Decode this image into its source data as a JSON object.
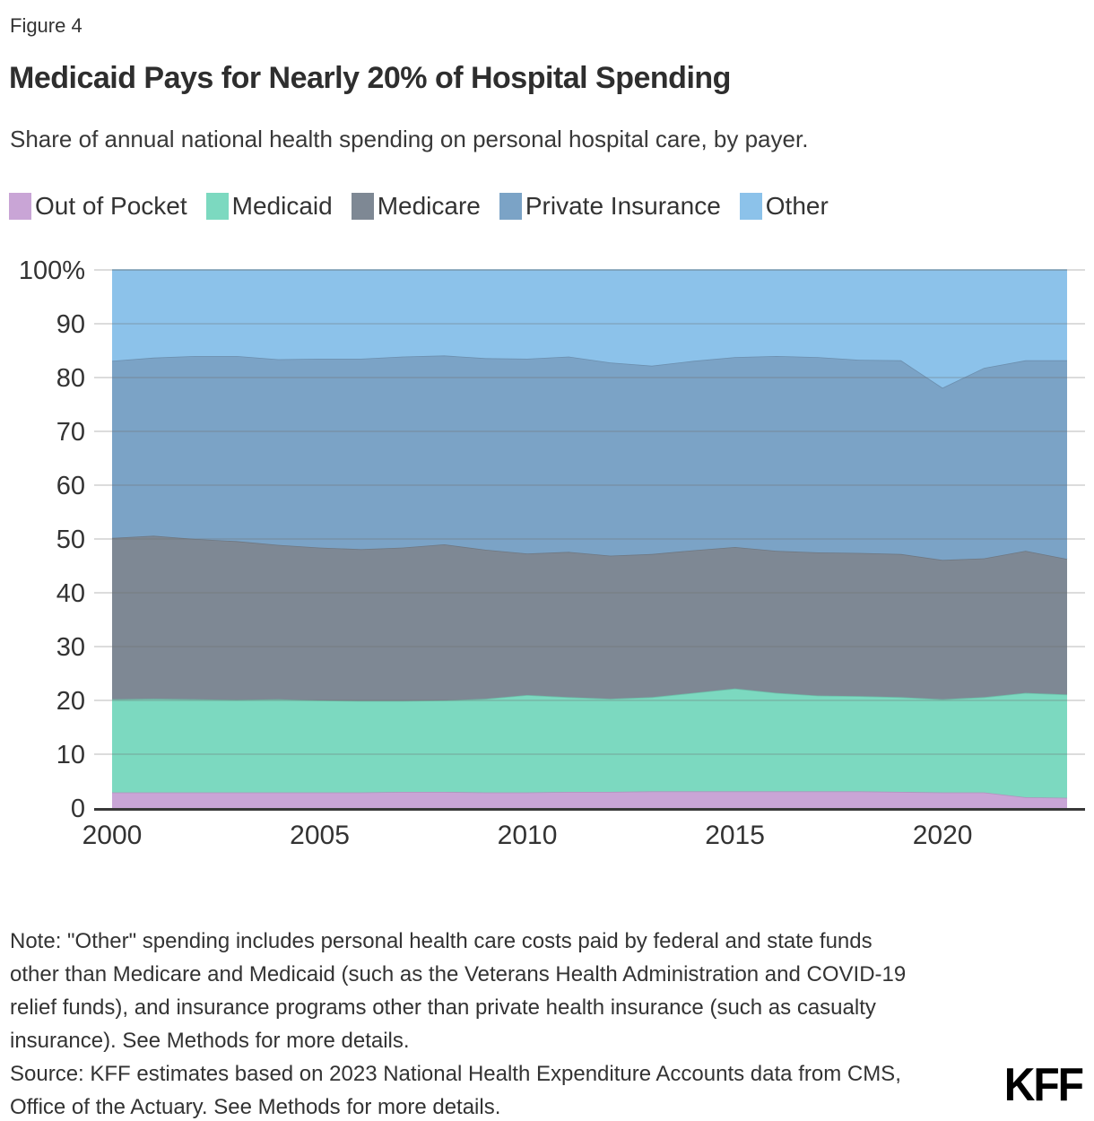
{
  "figure_label": "Figure 4",
  "title": "Medicaid Pays for Nearly 20% of Hospital Spending",
  "subtitle": "Share of annual national health spending on personal hospital care, by payer.",
  "legend": [
    {
      "label": "Out of Pocket",
      "color": "#c9a5d6"
    },
    {
      "label": "Medicaid",
      "color": "#7cd9c0"
    },
    {
      "label": "Medicare",
      "color": "#7e8894"
    },
    {
      "label": "Private Insurance",
      "color": "#7ba3c6"
    },
    {
      "label": "Other",
      "color": "#8cc2ea"
    }
  ],
  "chart_data": {
    "type": "area",
    "stacked": true,
    "title": "Medicaid Pays for Nearly 20% of Hospital Spending",
    "xlabel": "",
    "ylabel": "",
    "ylim": [
      0,
      100
    ],
    "grid": true,
    "legend_position": "top",
    "x": [
      2000,
      2001,
      2002,
      2003,
      2004,
      2005,
      2006,
      2007,
      2008,
      2009,
      2010,
      2011,
      2012,
      2013,
      2014,
      2015,
      2016,
      2017,
      2018,
      2019,
      2020,
      2021,
      2022,
      2023
    ],
    "x_ticks": [
      2000,
      2005,
      2010,
      2015,
      2020
    ],
    "y_ticks": [
      {
        "value": 0,
        "label": "0"
      },
      {
        "value": 10,
        "label": "10"
      },
      {
        "value": 20,
        "label": "20"
      },
      {
        "value": 30,
        "label": "30"
      },
      {
        "value": 40,
        "label": "40"
      },
      {
        "value": 50,
        "label": "50"
      },
      {
        "value": 60,
        "label": "60"
      },
      {
        "value": 70,
        "label": "70"
      },
      {
        "value": 80,
        "label": "80"
      },
      {
        "value": 90,
        "label": "90"
      },
      {
        "value": 100,
        "label": "100%"
      }
    ],
    "series": [
      {
        "name": "Out of Pocket",
        "color": "#c9a5d6",
        "values": [
          2.9,
          2.9,
          2.9,
          2.9,
          2.9,
          2.9,
          2.9,
          3.0,
          3.0,
          2.9,
          2.9,
          3.0,
          3.0,
          3.1,
          3.1,
          3.1,
          3.1,
          3.1,
          3.1,
          3.0,
          2.9,
          2.9,
          2.0,
          1.9
        ]
      },
      {
        "name": "Medicaid",
        "color": "#7cd9c0",
        "values": [
          17.3,
          17.4,
          17.3,
          17.2,
          17.3,
          17.1,
          17.0,
          16.9,
          17.0,
          17.4,
          18.1,
          17.6,
          17.3,
          17.5,
          18.3,
          19.1,
          18.3,
          17.8,
          17.7,
          17.6,
          17.3,
          17.7,
          19.4,
          19.2
        ]
      },
      {
        "name": "Medicare",
        "color": "#7e8894",
        "values": [
          30.0,
          30.3,
          29.8,
          29.5,
          28.7,
          28.4,
          28.2,
          28.5,
          29.0,
          27.7,
          26.3,
          27.0,
          26.6,
          26.6,
          26.5,
          26.3,
          26.4,
          26.6,
          26.6,
          26.6,
          25.9,
          25.8,
          26.4,
          25.2
        ]
      },
      {
        "name": "Private Insurance",
        "color": "#7ba3c6",
        "values": [
          32.9,
          33.1,
          34.0,
          34.4,
          34.5,
          35.1,
          35.4,
          35.5,
          35.1,
          35.6,
          36.2,
          36.3,
          35.9,
          35.0,
          35.2,
          35.3,
          36.2,
          36.3,
          35.9,
          36.0,
          32.0,
          35.4,
          35.4,
          36.9
        ]
      },
      {
        "name": "Other",
        "color": "#8cc2ea",
        "values": [
          16.9,
          16.3,
          16.0,
          16.0,
          16.6,
          16.5,
          16.5,
          16.1,
          15.9,
          16.4,
          16.5,
          16.1,
          17.2,
          17.8,
          16.9,
          16.2,
          16.0,
          16.2,
          16.7,
          16.8,
          21.9,
          18.2,
          16.8,
          16.8
        ]
      }
    ]
  },
  "note": {
    "lines": [
      "Note: \"Other\" spending includes personal health care costs paid by federal and state funds",
      "other than Medicare and Medicaid (such as the Veterans Health Administration and COVID-19",
      "relief funds), and insurance programs other than private health insurance (such as casualty",
      "insurance). See Methods for more details."
    ]
  },
  "source": {
    "lines": [
      "Source: KFF estimates based on 2023 National Health Expenditure Accounts data from CMS,",
      "Office of the Actuary. See Methods for more details."
    ]
  },
  "logo_text": "KFF",
  "colors": {
    "text": "#333333",
    "gridline": "#cccccc",
    "axis_line": "#383838",
    "background": "#ffffff"
  }
}
